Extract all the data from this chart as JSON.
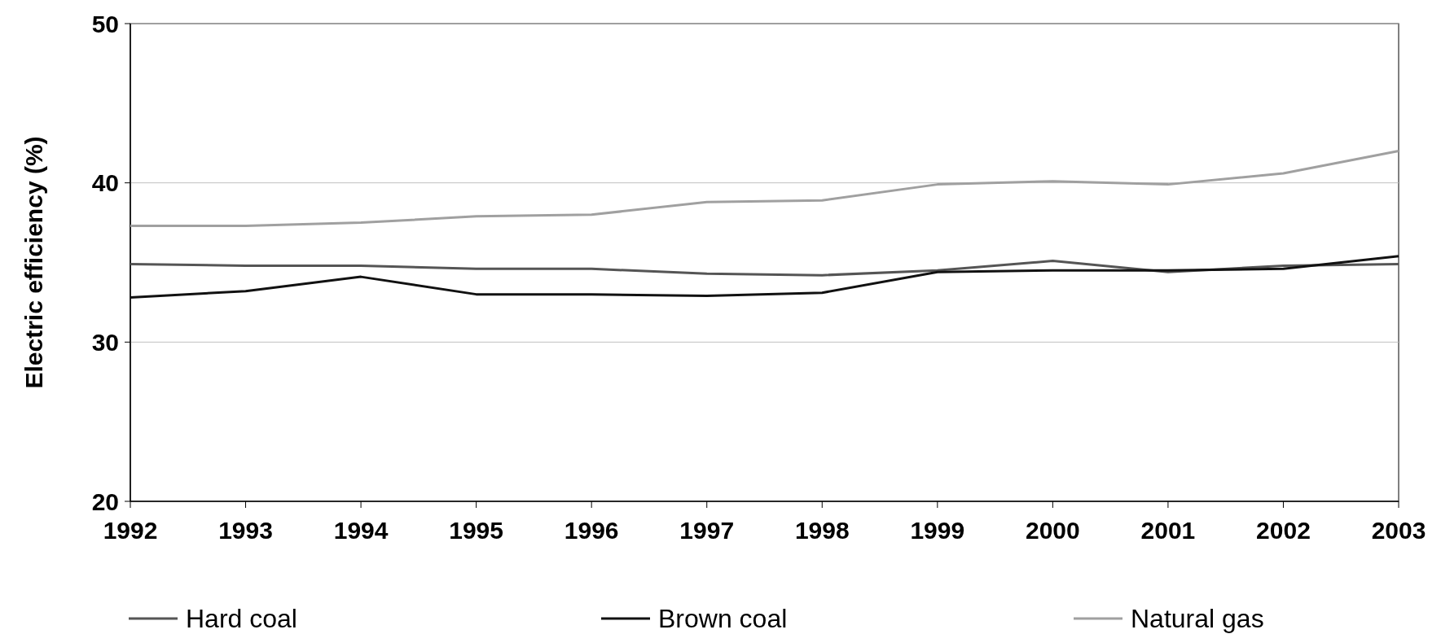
{
  "chart_data": {
    "type": "line",
    "ylabel": "Electric efficiency (%)",
    "categories": [
      "1992",
      "1993",
      "1994",
      "1995",
      "1996",
      "1997",
      "1998",
      "1999",
      "2000",
      "2001",
      "2002",
      "2003"
    ],
    "ylim": [
      20,
      50
    ],
    "yticks": [
      20,
      30,
      40,
      50
    ],
    "grid": "y",
    "legend": "bottom",
    "marker": "none",
    "line_style": "solid",
    "series": [
      {
        "name": "Hard coal",
        "color": "#555555",
        "values": [
          34.9,
          34.8,
          34.8,
          34.6,
          34.6,
          34.3,
          34.2,
          34.5,
          35.1,
          34.4,
          34.8,
          34.9
        ]
      },
      {
        "name": "Brown coal",
        "color": "#111111",
        "values": [
          32.8,
          33.2,
          34.1,
          33.0,
          33.0,
          32.9,
          33.1,
          34.4,
          34.5,
          34.5,
          34.6,
          35.4
        ]
      },
      {
        "name": "Natural gas",
        "color": "#a0a0a0",
        "values": [
          37.3,
          37.3,
          37.5,
          37.9,
          38.0,
          38.8,
          38.9,
          39.9,
          40.1,
          39.9,
          40.6,
          42.0
        ]
      }
    ]
  }
}
